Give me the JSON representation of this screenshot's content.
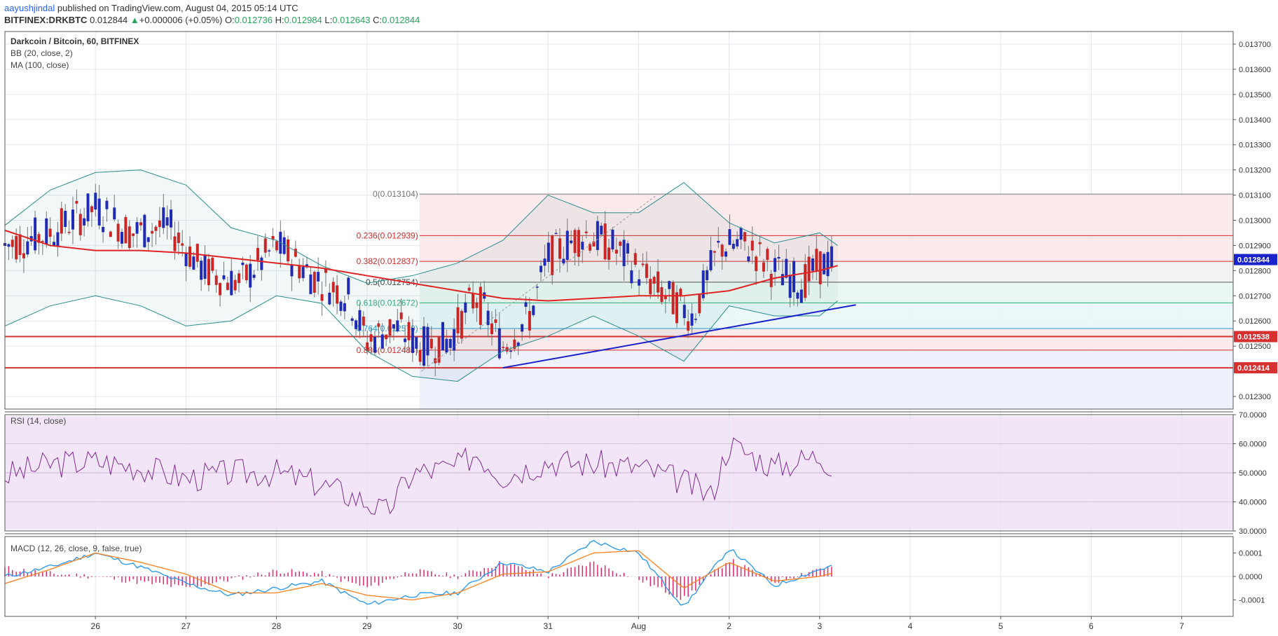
{
  "header": {
    "author": "aayushjindal",
    "published": "published on TradingView.com, August 04, 2015 05:14 UTC",
    "symbol": "BITFINEX:DRKBTC",
    "price": "0.012844",
    "change": "+0.000006 (+0.05%)",
    "o_label": "O:",
    "o_value": "0.012736",
    "h_label": "H:",
    "h_value": "0.012984",
    "l_label": "L:",
    "l_value": "0.012643",
    "c_label": "C:",
    "c_value": "0.012844"
  },
  "price_panel": {
    "title": "Darkcoin / Bitcoin, 60, BITFINEX",
    "indicator1": "BB (20, close, 2)",
    "indicator2": "MA (100, close)"
  },
  "rsi_panel": {
    "title": "RSI (14, close)"
  },
  "macd_panel": {
    "title": "MACD (12, 26, close, 9, false, true)"
  },
  "colors": {
    "up_candle": "#1f25b8",
    "down_candle": "#d62020",
    "ma": "#e02424",
    "bb": "#2a8c8c",
    "trendline": "#1a22cc",
    "rsi": "#7b2d8e",
    "macd": "#2196f3",
    "signal": "#ff7f1a",
    "hist": "#e0266f",
    "rsi_band": "#f3e5f8"
  },
  "chart_data": [
    {
      "type": "candlestick",
      "title": "Darkcoin / Bitcoin, 60, BITFINEX",
      "ylim": [
        0.01225,
        0.01375
      ],
      "y_ticks": [
        "0.013700",
        "0.013600",
        "0.013500",
        "0.013400",
        "0.013300",
        "0.013200",
        "0.013100",
        "0.013000",
        "0.012900",
        "0.012800",
        "0.012700",
        "0.012600",
        "0.012500",
        "0.012300"
      ],
      "x_ticks": [
        "26",
        "27",
        "28",
        "29",
        "30",
        "31",
        "Aug",
        "2",
        "3",
        "4",
        "5",
        "6",
        "7"
      ],
      "last_price_label": "0.012844",
      "horizontal_levels": [
        {
          "value": 0.012538,
          "label": "0.012538"
        },
        {
          "value": 0.012414,
          "label": "0.012414"
        }
      ],
      "fibonacci": {
        "levels": [
          {
            "ratio": "0",
            "value": 0.013104,
            "label": "0(0.013104)"
          },
          {
            "ratio": "0.236",
            "value": 0.012939,
            "label": "0.236(0.012939)"
          },
          {
            "ratio": "0.382",
            "value": 0.012837,
            "label": "0.382(0.012837)"
          },
          {
            "ratio": "0.5",
            "value": 0.012754,
            "label": "0.5(0.012754)"
          },
          {
            "ratio": "0.618",
            "value": 0.012672,
            "label": "0.618(0.012672)"
          },
          {
            "ratio": "0.764",
            "value": 0.01257,
            "label": "0.764(0.012570)"
          },
          {
            "ratio": "0.886",
            "value": 0.012484,
            "label": "0.886(0.012484)"
          }
        ]
      },
      "trendline": {
        "start": [
          "30.5",
          0.012414
        ],
        "end": [
          "4.4",
          0.012664
        ]
      },
      "series": [
        {
          "name": "MA (100, close)",
          "x": [
            25.0,
            25.5,
            26.0,
            26.5,
            27.0,
            27.5,
            28.0,
            28.5,
            29.0,
            29.5,
            30.0,
            30.5,
            31.0,
            31.5,
            32.0,
            32.5,
            33.0,
            33.5,
            34.0,
            34.2
          ],
          "values": [
            0.01296,
            0.0129,
            0.01288,
            0.01288,
            0.01287,
            0.01285,
            0.01283,
            0.01281,
            0.01278,
            0.01275,
            0.01272,
            0.01269,
            0.01268,
            0.01269,
            0.0127,
            0.0127,
            0.01272,
            0.01277,
            0.0128,
            0.01282
          ]
        },
        {
          "name": "BB upper",
          "x": [
            25.0,
            25.5,
            26.0,
            26.5,
            27.0,
            27.5,
            28.0,
            28.5,
            29.0,
            29.5,
            30.0,
            30.5,
            31.0,
            31.5,
            32.0,
            32.5,
            33.0,
            33.5,
            34.0,
            34.2
          ],
          "values": [
            0.01298,
            0.01312,
            0.01319,
            0.0132,
            0.01314,
            0.01297,
            0.01292,
            0.01282,
            0.01275,
            0.01278,
            0.01283,
            0.01292,
            0.0131,
            0.01303,
            0.01303,
            0.01315,
            0.01299,
            0.01291,
            0.01295,
            0.0129
          ]
        },
        {
          "name": "BB lower",
          "x": [
            25.0,
            25.5,
            26.0,
            26.5,
            27.0,
            27.5,
            28.0,
            28.5,
            29.0,
            29.5,
            30.0,
            30.5,
            31.0,
            31.5,
            32.0,
            32.5,
            33.0,
            33.5,
            34.0,
            34.2
          ],
          "values": [
            0.01258,
            0.01266,
            0.0127,
            0.01266,
            0.01258,
            0.0126,
            0.0127,
            0.01267,
            0.01248,
            0.01238,
            0.01236,
            0.01248,
            0.01254,
            0.01262,
            0.01254,
            0.01244,
            0.01266,
            0.01262,
            0.01262,
            0.01268
          ]
        }
      ]
    },
    {
      "type": "line",
      "title": "RSI (14, close)",
      "ylim": [
        30,
        70
      ],
      "y_ticks": [
        "70.0000",
        "60.0000",
        "50.0000",
        "40.0000",
        "30.0000"
      ],
      "x": [
        25.0,
        25.5,
        26.0,
        26.5,
        27.0,
        27.5,
        28.0,
        28.5,
        29.0,
        29.2,
        29.5,
        30.0,
        30.2,
        30.5,
        31.0,
        31.5,
        32.0,
        32.5,
        32.8,
        33.0,
        33.5,
        34.0,
        34.2
      ],
      "values": [
        49,
        53,
        54,
        52,
        48,
        50,
        50,
        46,
        40,
        36,
        50,
        52,
        57,
        49,
        54,
        53,
        52,
        47,
        42,
        60,
        52,
        56,
        51
      ]
    },
    {
      "type": "line",
      "title": "MACD (12, 26, close, 9, false, true)",
      "ylim": [
        -0.00017,
        0.00017
      ],
      "y_ticks": [
        "0.0001",
        "0.0000",
        "-0.0001"
      ],
      "series": [
        {
          "name": "MACD",
          "x": [
            25.0,
            25.5,
            26.0,
            26.5,
            27.0,
            27.5,
            28.0,
            28.5,
            29.0,
            29.5,
            30.0,
            30.5,
            31.0,
            31.5,
            32.0,
            32.5,
            33.0,
            33.5,
            34.0,
            34.2
          ],
          "values": [
            0.0,
            4e-05,
            0.0001,
            4e-05,
            -3e-05,
            -8e-05,
            -5e-05,
            -2e-05,
            -0.00012,
            -8e-05,
            -7e-05,
            6e-05,
            2e-05,
            0.00015,
            0.0001,
            -0.00013,
            0.00012,
            -4e-05,
            3e-05,
            5e-05
          ]
        },
        {
          "name": "Signal",
          "x": [
            25.0,
            25.5,
            26.0,
            26.5,
            27.0,
            27.5,
            28.0,
            28.5,
            29.0,
            29.5,
            30.0,
            30.5,
            31.0,
            31.5,
            32.0,
            32.5,
            33.0,
            33.5,
            34.0,
            34.2
          ],
          "values": [
            -3e-05,
            3e-05,
            0.0001,
            6e-05,
            1e-05,
            -7e-05,
            -7e-05,
            -3e-05,
            -8e-05,
            -0.0001,
            -7e-05,
            1e-05,
            2e-05,
            0.0001,
            0.00011,
            -5e-05,
            6e-05,
            -2e-05,
            0.0,
            2e-05
          ]
        }
      ]
    }
  ]
}
